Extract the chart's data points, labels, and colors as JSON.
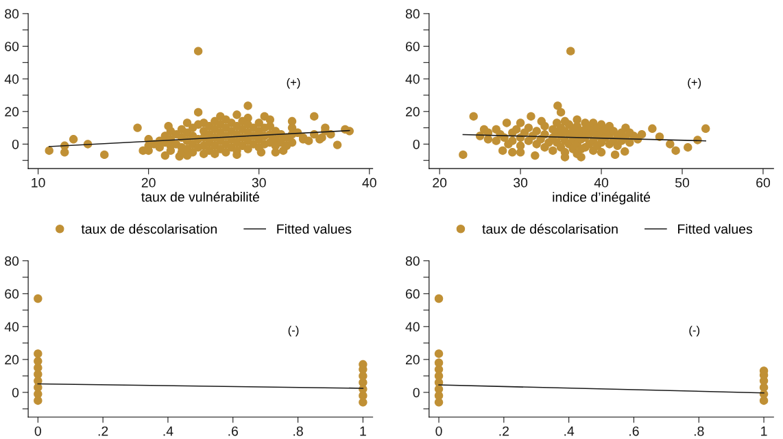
{
  "chart_data": [
    {
      "type": "scatter",
      "xlabel": "taux de vulnérabilité",
      "xlim": [
        9.1,
        40.3
      ],
      "xticks": [
        10,
        20,
        30,
        40
      ],
      "ylim": [
        -15,
        80
      ],
      "yticks": [
        {
          "value": -10,
          "label": null
        },
        0,
        {
          "value": 10,
          "label": null
        },
        20,
        {
          "value": 30,
          "label": null
        },
        40,
        {
          "value": 50,
          "label": null
        },
        60,
        {
          "value": 70,
          "label": null
        },
        80
      ],
      "legend": "bottom",
      "grid": false,
      "annotations": [
        "(+)"
      ],
      "series": [
        {
          "name": "taux de déscolarisation",
          "color": "#c09035",
          "marker": "circle",
          "x": [
            24.5,
            29,
            24.5,
            35,
            19,
            11,
            12.4,
            12.4,
            13.2,
            14.5,
            16,
            37.1,
            38.2,
            37.8,
            31.5,
            30.2,
            32.2,
            28,
            22.8,
            21.5,
            23.5,
            33,
            30.5,
            31,
            26.5,
            28,
            29,
            23.5,
            21.8,
            36,
            35.7,
            34,
            20,
            20,
            20.5,
            19.5,
            20,
            21,
            21,
            21.5,
            21.5,
            22,
            22,
            22,
            22,
            22.5,
            22.5,
            23,
            23,
            23,
            23,
            23.5,
            23.5,
            23.5,
            24,
            24,
            24,
            24,
            24.5,
            24.5,
            24.5,
            25,
            25,
            25,
            25,
            25,
            25.5,
            25.5,
            25.5,
            25.5,
            26,
            26,
            26,
            26,
            26,
            26.5,
            26.5,
            26.5,
            26.5,
            27,
            27,
            27,
            27,
            27,
            27.5,
            27.5,
            27.5,
            27.5,
            28,
            28,
            28,
            28,
            28.5,
            28.5,
            28.5,
            28.5,
            29,
            29,
            29,
            29,
            29.5,
            29.5,
            29.5,
            30,
            30,
            30,
            30,
            30.5,
            30.5,
            30.5,
            31,
            31,
            31,
            31.5,
            31.5,
            31.5,
            32,
            32,
            32.5,
            32.5,
            33,
            33,
            33,
            33.5,
            34,
            34.5,
            35,
            35.5,
            36,
            36.5
          ],
          "values": [
            57,
            23.5,
            19.5,
            17,
            10,
            -4,
            -1,
            -5,
            3,
            0,
            -6.5,
            -0.5,
            8,
            9,
            -5,
            -5,
            -4,
            -6.5,
            -7.5,
            -7,
            -7,
            14,
            17,
            15,
            17,
            18,
            16,
            13,
            11,
            10,
            4,
            3,
            -1,
            3,
            0,
            -4,
            -4,
            2,
            -2,
            5,
            1,
            8,
            3,
            -1,
            -4,
            6,
            0,
            4,
            9,
            -2,
            -5,
            7,
            2,
            -3,
            10,
            5,
            0,
            -5,
            12,
            3,
            -2,
            8,
            13,
            4,
            -1,
            -6,
            11,
            6,
            1,
            -4,
            14,
            9,
            4,
            -1,
            -6,
            12,
            7,
            2,
            -3,
            15,
            10,
            5,
            0,
            -5,
            13,
            8,
            3,
            -2,
            11,
            6,
            1,
            -4,
            14,
            9,
            4,
            -1,
            12,
            7,
            2,
            -3,
            10,
            5,
            0,
            13,
            8,
            3,
            -2,
            10,
            5,
            0,
            11,
            6,
            1,
            8,
            3,
            -1,
            6,
            1,
            4,
            -1,
            10,
            6,
            1,
            7,
            4,
            2,
            6,
            3,
            8,
            6
          ]
        },
        {
          "name": "Fitted values",
          "type": "line",
          "color": "#1a1a1a",
          "marker": "none",
          "x": [
            11,
            38.2
          ],
          "values": [
            -1.5,
            8.3
          ]
        }
      ]
    },
    {
      "type": "scatter",
      "xlabel": "indice d’inégalité",
      "xlim": [
        18.7,
        61.3
      ],
      "xticks": [
        20,
        30,
        40,
        50,
        60
      ],
      "ylim": [
        -15,
        80
      ],
      "yticks": [
        {
          "value": -10,
          "label": null
        },
        0,
        {
          "value": 10,
          "label": null
        },
        20,
        {
          "value": 30,
          "label": null
        },
        40,
        {
          "value": 50,
          "label": null
        },
        60,
        {
          "value": 70,
          "label": null
        },
        80
      ],
      "legend": "bottom",
      "grid": false,
      "annotations": [
        "(+)"
      ],
      "series": [
        {
          "name": "taux de déscolarisation",
          "color": "#c09035",
          "marker": "circle",
          "x": [
            36.2,
            34.6,
            35,
            24.2,
            22.9,
            52.9,
            51.9,
            50.7,
            49.2,
            48.5,
            47.2,
            46.3,
            27.8,
            29,
            30,
            31.8,
            35.5,
            37.5,
            42.9,
            41.7,
            31.3,
            32.6,
            28.3,
            30,
            25,
            25.5,
            26,
            26,
            27,
            27,
            27.5,
            28,
            28.5,
            29,
            29,
            29.5,
            30,
            30,
            30.5,
            31,
            31,
            31.5,
            32,
            32,
            32.5,
            33,
            33,
            33,
            33.5,
            34,
            34,
            34,
            34.5,
            34.5,
            34.5,
            35,
            35,
            35,
            35.5,
            35.5,
            35.5,
            35.5,
            36,
            36,
            36,
            36.5,
            36.5,
            36.5,
            37,
            37,
            37,
            37,
            37,
            37.5,
            37.5,
            37.5,
            38,
            38,
            38,
            38,
            38.5,
            38.5,
            38.5,
            39,
            39,
            39,
            39,
            39.5,
            39.5,
            39.5,
            40,
            40,
            40,
            40,
            40.5,
            40.5,
            41,
            41,
            41,
            41.5,
            41.5,
            42,
            42,
            42.5,
            42.5,
            43,
            43,
            43.5,
            43.5,
            44,
            44.5,
            45
          ],
          "values": [
            57,
            23.5,
            19.5,
            17,
            -6.5,
            9.5,
            2.5,
            -2,
            -4,
            0,
            4.5,
            9.5,
            -4,
            -5,
            -5,
            -7,
            -8,
            -8,
            -4.5,
            -6.5,
            17,
            14,
            13,
            13,
            5,
            9,
            3,
            7,
            9,
            2,
            6,
            4,
            0,
            7,
            2,
            9,
            4,
            -1,
            7,
            2,
            10,
            5,
            0,
            8,
            3,
            11,
            6,
            -2,
            1,
            9,
            4,
            -4,
            13,
            7,
            1,
            10,
            5,
            -2,
            14,
            8,
            2,
            -5,
            12,
            6,
            0,
            9,
            3,
            -3,
            15,
            11,
            6,
            0,
            -6,
            8,
            3,
            -3,
            13,
            9,
            4,
            -2,
            11,
            6,
            0,
            13,
            8,
            2,
            -4,
            10,
            5,
            -1,
            12,
            7,
            1,
            -5,
            9,
            4,
            11,
            6,
            0,
            8,
            2,
            5,
            -1,
            7,
            2,
            10,
            4,
            7,
            1,
            5,
            3,
            6
          ]
        },
        {
          "name": "Fitted values",
          "type": "line",
          "color": "#1a1a1a",
          "marker": "none",
          "x": [
            22.9,
            52.9
          ],
          "values": [
            5.8,
            2.0
          ]
        }
      ]
    },
    {
      "type": "scatter",
      "xlim": [
        -0.03,
        1.03
      ],
      "xticks": [
        {
          "value": 0,
          "label": "0"
        },
        {
          "value": 0.2,
          "label": ".2"
        },
        {
          "value": 0.4,
          "label": ".4"
        },
        {
          "value": 0.6,
          "label": ".6"
        },
        {
          "value": 0.8,
          "label": ".8"
        },
        {
          "value": 1,
          "label": "1"
        }
      ],
      "ylim": [
        -15,
        80
      ],
      "yticks": [
        {
          "value": -10,
          "label": null
        },
        0,
        {
          "value": 10,
          "label": null
        },
        20,
        {
          "value": 30,
          "label": null
        },
        40,
        {
          "value": 50,
          "label": null
        },
        60,
        {
          "value": 70,
          "label": null
        },
        80
      ],
      "grid": false,
      "annotations": [
        "(-)"
      ],
      "series": [
        {
          "color": "#c09035",
          "marker": "circle",
          "x": [
            0,
            0,
            0,
            0,
            0,
            0,
            0,
            0,
            0,
            1,
            1,
            1,
            1,
            1,
            1,
            1
          ],
          "values": [
            -5,
            -1,
            3,
            7,
            11,
            15,
            19,
            23.5,
            57,
            -6,
            -2,
            2,
            6,
            10,
            14,
            17
          ]
        },
        {
          "type": "line",
          "color": "#1a1a1a",
          "marker": "none",
          "x": [
            0,
            1
          ],
          "values": [
            5.2,
            2.5
          ]
        }
      ]
    },
    {
      "type": "scatter",
      "xlim": [
        -0.03,
        1.03
      ],
      "xticks": [
        {
          "value": 0,
          "label": "0"
        },
        {
          "value": 0.2,
          "label": ".2"
        },
        {
          "value": 0.4,
          "label": ".4"
        },
        {
          "value": 0.6,
          "label": ".6"
        },
        {
          "value": 0.8,
          "label": ".8"
        },
        {
          "value": 1,
          "label": "1"
        }
      ],
      "ylim": [
        -15,
        80
      ],
      "yticks": [
        {
          "value": -10,
          "label": null
        },
        0,
        {
          "value": 10,
          "label": null
        },
        20,
        {
          "value": 30,
          "label": null
        },
        40,
        {
          "value": 50,
          "label": null
        },
        60,
        {
          "value": 70,
          "label": null
        },
        80
      ],
      "grid": false,
      "annotations": [
        "(-)"
      ],
      "series": [
        {
          "color": "#c09035",
          "marker": "circle",
          "x": [
            0,
            0,
            0,
            0,
            0,
            0,
            0,
            0,
            0,
            1,
            1,
            1,
            1,
            1,
            1
          ],
          "values": [
            -6,
            -2,
            2,
            6,
            10,
            14,
            18,
            23.5,
            57,
            -5,
            -1,
            3,
            7,
            10.5,
            13.1
          ]
        },
        {
          "type": "line",
          "color": "#1a1a1a",
          "marker": "none",
          "x": [
            0,
            1
          ],
          "values": [
            4.5,
            -0.3
          ]
        }
      ]
    }
  ]
}
